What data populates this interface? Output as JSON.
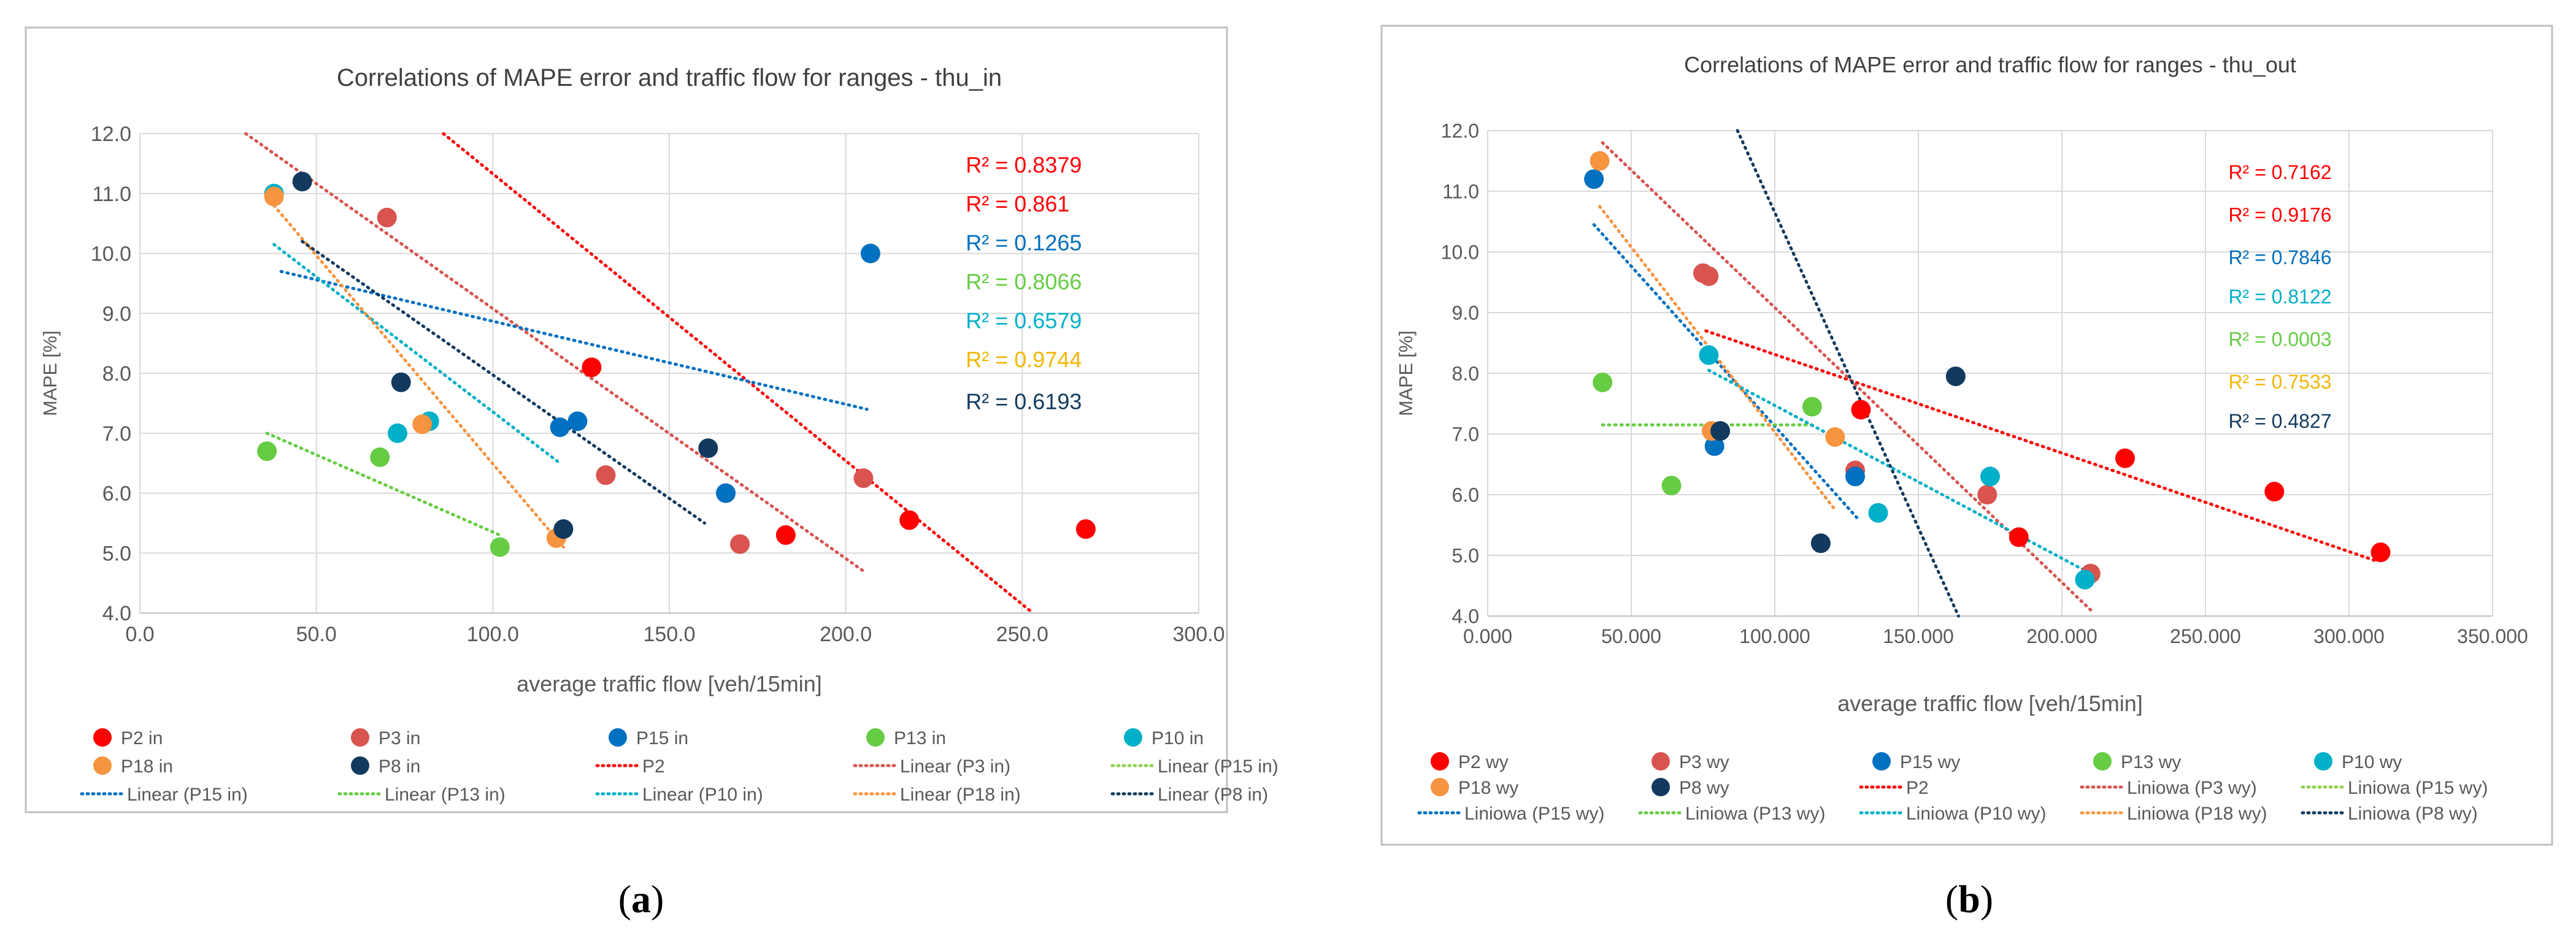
{
  "panels": {
    "a": {
      "caption_open": "(",
      "caption_letter": "a",
      "caption_close": ")"
    },
    "b": {
      "caption_open": "(",
      "caption_letter": "b",
      "caption_close": ")"
    }
  },
  "chart_data": [
    {
      "type": "scatter",
      "title": "Correlations of MAPE error and traffic flow for ranges - thu_in",
      "xlabel": "average traffic flow [veh/15min]",
      "ylabel": "MAPE [%]",
      "xlim": [
        0,
        300
      ],
      "ylim": [
        4,
        12
      ],
      "xticks": [
        0,
        50,
        100,
        150,
        200,
        250,
        300
      ],
      "xtick_labels": [
        "0.0",
        "50.0",
        "100.0",
        "150.0",
        "200.0",
        "250.0",
        "300.0"
      ],
      "yticks": [
        4,
        5,
        6,
        7,
        8,
        9,
        10,
        11,
        12
      ],
      "ytick_labels": [
        "4.0",
        "5.0",
        "6.0",
        "7.0",
        "8.0",
        "9.0",
        "10.0",
        "11.0",
        "12.0"
      ],
      "grid": true,
      "legend_position": "bottom",
      "series": [
        {
          "name": "P2 in",
          "color": "#ff0000",
          "points": [
            [
              128,
              8.1
            ],
            [
              183,
              5.3
            ],
            [
              218,
              5.55
            ],
            [
              268,
              5.4
            ]
          ]
        },
        {
          "name": "P3 in",
          "color": "#d9534f",
          "points": [
            [
              70,
              10.6
            ],
            [
              132,
              6.3
            ],
            [
              170,
              5.15
            ],
            [
              205,
              6.25
            ]
          ]
        },
        {
          "name": "P15 in",
          "color": "#0070c0",
          "points": [
            [
              119,
              7.1
            ],
            [
              124,
              7.2
            ],
            [
              166,
              6.0
            ],
            [
              207,
              10.0
            ]
          ]
        },
        {
          "name": "P13 in",
          "color": "#66cc44",
          "points": [
            [
              36,
              6.7
            ],
            [
              68,
              6.6
            ],
            [
              102,
              5.1
            ]
          ]
        },
        {
          "name": "P10 in",
          "color": "#00b0c8",
          "points": [
            [
              38,
              11.0
            ],
            [
              73,
              7.0
            ],
            [
              82,
              7.2
            ]
          ]
        },
        {
          "name": "P18 in",
          "color": "#f7943f",
          "points": [
            [
              38,
              10.95
            ],
            [
              80,
              7.15
            ],
            [
              118,
              5.25
            ]
          ]
        },
        {
          "name": "P8 in",
          "color": "#123a5e",
          "points": [
            [
              46,
              11.2
            ],
            [
              74,
              7.85
            ],
            [
              120,
              5.4
            ],
            [
              161,
              6.75
            ]
          ]
        }
      ],
      "trendlines": [
        {
          "name": "P2",
          "color": "#ff0000",
          "from": [
            86,
            12.0
          ],
          "to": [
            253,
            4.0
          ]
        },
        {
          "name": "Linear (P3 in)",
          "color": "#d9534f",
          "from": [
            30,
            12.0
          ],
          "to": [
            205,
            4.7
          ]
        },
        {
          "name": "Linear (P15 in)",
          "color": "#0070c0",
          "from": [
            40,
            9.7
          ],
          "to": [
            206,
            7.4
          ]
        },
        {
          "name": "Linear (P13 in)",
          "color": "#66cc44",
          "from": [
            36,
            7.0
          ],
          "to": [
            102,
            5.3
          ]
        },
        {
          "name": "Linear (P10 in)",
          "color": "#00b0c8",
          "from": [
            38,
            10.15
          ],
          "to": [
            119,
            6.5
          ]
        },
        {
          "name": "Linear (P18 in)",
          "color": "#f7943f",
          "from": [
            38,
            10.8
          ],
          "to": [
            120,
            5.1
          ]
        },
        {
          "name": "Linear (P8 in)",
          "color": "#123a5e",
          "from": [
            46,
            10.2
          ],
          "to": [
            160,
            5.5
          ]
        }
      ],
      "r2_labels": [
        {
          "text": "R² = 0.8379",
          "color": "#ff0000",
          "at": [
            234,
            11.35
          ]
        },
        {
          "text": "R² = 0.861",
          "color": "#ff0000",
          "at": [
            234,
            10.7
          ]
        },
        {
          "text": "R² = 0.1265",
          "color": "#0070c0",
          "at": [
            234,
            10.05
          ]
        },
        {
          "text": "R² = 0.8066",
          "color": "#66cc44",
          "at": [
            234,
            9.4
          ]
        },
        {
          "text": "R² = 0.6579",
          "color": "#00b0c8",
          "at": [
            234,
            8.75
          ]
        },
        {
          "text": "R² = 0.9744",
          "color": "#f2b705",
          "at": [
            234,
            8.1
          ]
        },
        {
          "text": "R² = 0.6193",
          "color": "#123a5e",
          "at": [
            234,
            7.4
          ]
        }
      ],
      "legend": [
        {
          "label": "P2 in",
          "type": "dot",
          "color": "#ff0000"
        },
        {
          "label": "P3 in",
          "type": "dot",
          "color": "#d9534f"
        },
        {
          "label": "P15 in",
          "type": "dot",
          "color": "#0070c0"
        },
        {
          "label": "P13 in",
          "type": "dot",
          "color": "#66cc44"
        },
        {
          "label": "P10 in",
          "type": "dot",
          "color": "#00b0c8"
        },
        {
          "label": "P18 in",
          "type": "dot",
          "color": "#f7943f"
        },
        {
          "label": "P8 in",
          "type": "dot",
          "color": "#123a5e"
        },
        {
          "label": "P2",
          "type": "line",
          "color": "#ff0000"
        },
        {
          "label": "Linear (P3 in)",
          "type": "line",
          "color": "#d9534f"
        },
        {
          "label": "Linear (P15 in)",
          "type": "line",
          "color": "#92d050"
        },
        {
          "label": "Linear (P15 in)",
          "type": "line",
          "color": "#0070c0"
        },
        {
          "label": "Linear (P13 in)",
          "type": "line",
          "color": "#66cc44"
        },
        {
          "label": "Linear (P10 in)",
          "type": "line",
          "color": "#00b0c8"
        },
        {
          "label": "Linear (P18 in)",
          "type": "line",
          "color": "#f7943f"
        },
        {
          "label": "Linear (P8 in)",
          "type": "line",
          "color": "#123a5e"
        }
      ]
    },
    {
      "type": "scatter",
      "title": "Correlations of MAPE error and traffic flow for ranges - thu_out",
      "xlabel": "average traffic flow [veh/15min]",
      "ylabel": "MAPE [%]",
      "xlim": [
        0,
        350000
      ],
      "ylim": [
        4,
        12
      ],
      "xticks": [
        0,
        50000,
        100000,
        150000,
        200000,
        250000,
        300000,
        350000
      ],
      "xtick_labels": [
        "0.000",
        "50.000",
        "100.000",
        "150.000",
        "200.000",
        "250.000",
        "300.000",
        "350.000"
      ],
      "yticks": [
        4,
        5,
        6,
        7,
        8,
        9,
        10,
        11,
        12
      ],
      "ytick_labels": [
        "4.0",
        "5.0",
        "6.0",
        "7.0",
        "8.0",
        "9.0",
        "10.0",
        "11.0",
        "12.0"
      ],
      "grid": true,
      "legend_position": "bottom",
      "series": [
        {
          "name": "P2 wy",
          "color": "#ff0000",
          "points": [
            [
              130000,
              7.4
            ],
            [
              185000,
              5.3
            ],
            [
              222000,
              6.6
            ],
            [
              274000,
              6.05
            ],
            [
              311000,
              5.05
            ]
          ]
        },
        {
          "name": "P3 wy",
          "color": "#d9534f",
          "points": [
            [
              75000,
              9.65
            ],
            [
              77000,
              9.6
            ],
            [
              128000,
              6.4
            ],
            [
              174000,
              6.0
            ],
            [
              210000,
              4.7
            ]
          ]
        },
        {
          "name": "P15 wy",
          "color": "#0070c0",
          "points": [
            [
              37000,
              11.2
            ],
            [
              79000,
              6.8
            ],
            [
              128000,
              6.3
            ]
          ]
        },
        {
          "name": "P13 wy",
          "color": "#66cc44",
          "points": [
            [
              40000,
              7.85
            ],
            [
              64000,
              6.15
            ],
            [
              113000,
              7.45
            ]
          ]
        },
        {
          "name": "P10 wy",
          "color": "#00b0c8",
          "points": [
            [
              77000,
              8.3
            ],
            [
              136000,
              5.7
            ],
            [
              175000,
              6.3
            ],
            [
              208000,
              4.6
            ]
          ]
        },
        {
          "name": "P18 wy",
          "color": "#f7943f",
          "points": [
            [
              39000,
              11.5
            ],
            [
              78000,
              7.05
            ],
            [
              121000,
              6.95
            ]
          ]
        },
        {
          "name": "P8 wy",
          "color": "#123a5e",
          "points": [
            [
              81000,
              7.05
            ],
            [
              116000,
              5.2
            ],
            [
              163000,
              7.95
            ]
          ]
        }
      ],
      "trendlines": [
        {
          "name": "P2",
          "color": "#ff0000",
          "from": [
            76000,
            8.7
          ],
          "to": [
            310000,
            4.9
          ]
        },
        {
          "name": "Liniowa (P3 wy)",
          "color": "#d9534f",
          "from": [
            40000,
            11.8
          ],
          "to": [
            210000,
            4.1
          ]
        },
        {
          "name": "Liniowa (P15 wy)",
          "color": "#0070c0",
          "from": [
            37000,
            10.45
          ],
          "to": [
            129000,
            5.6
          ]
        },
        {
          "name": "Liniowa (P13 wy)",
          "color": "#66cc44",
          "from": [
            40000,
            7.15
          ],
          "to": [
            113000,
            7.15
          ]
        },
        {
          "name": "Liniowa (P10 wy)",
          "color": "#00b0c8",
          "from": [
            77000,
            8.05
          ],
          "to": [
            208000,
            4.75
          ]
        },
        {
          "name": "Liniowa (P18 wy)",
          "color": "#f7943f",
          "from": [
            39000,
            10.75
          ],
          "to": [
            121000,
            5.75
          ]
        },
        {
          "name": "Liniowa (P8 wy)",
          "color": "#123a5e",
          "from": [
            87000,
            12.0
          ],
          "to": [
            164000,
            4.0
          ]
        }
      ],
      "r2_labels": [
        {
          "text": "R² = 0.7162",
          "color": "#ff0000",
          "at": [
            258000,
            11.2
          ]
        },
        {
          "text": "R² = 0.9176",
          "color": "#ff0000",
          "at": [
            258000,
            10.5
          ]
        },
        {
          "text": "R² = 0.7846",
          "color": "#0070c0",
          "at": [
            258000,
            9.8
          ]
        },
        {
          "text": "R² = 0.8122",
          "color": "#00b0c8",
          "at": [
            258000,
            9.15
          ]
        },
        {
          "text": "R² = 0.0003",
          "color": "#66cc44",
          "at": [
            258000,
            8.45
          ]
        },
        {
          "text": "R² = 0.7533",
          "color": "#f2b705",
          "at": [
            258000,
            7.75
          ]
        },
        {
          "text": "R² = 0.4827",
          "color": "#123a5e",
          "at": [
            258000,
            7.1
          ]
        }
      ],
      "legend": [
        {
          "label": "P2 wy",
          "type": "dot",
          "color": "#ff0000"
        },
        {
          "label": "P3 wy",
          "type": "dot",
          "color": "#d9534f"
        },
        {
          "label": "P15 wy",
          "type": "dot",
          "color": "#0070c0"
        },
        {
          "label": "P13 wy",
          "type": "dot",
          "color": "#66cc44"
        },
        {
          "label": "P10 wy",
          "type": "dot",
          "color": "#00b0c8"
        },
        {
          "label": "P18 wy",
          "type": "dot",
          "color": "#f7943f"
        },
        {
          "label": "P8 wy",
          "type": "dot",
          "color": "#123a5e"
        },
        {
          "label": "P2",
          "type": "line",
          "color": "#ff0000"
        },
        {
          "label": "Liniowa (P3 wy)",
          "type": "line",
          "color": "#d9534f"
        },
        {
          "label": "Liniowa (P15 wy)",
          "type": "line",
          "color": "#92d050"
        },
        {
          "label": "Liniowa (P15 wy)",
          "type": "line",
          "color": "#0070c0"
        },
        {
          "label": "Liniowa (P13 wy)",
          "type": "line",
          "color": "#66cc44"
        },
        {
          "label": "Liniowa (P10 wy)",
          "type": "line",
          "color": "#00b0c8"
        },
        {
          "label": "Liniowa (P18 wy)",
          "type": "line",
          "color": "#f7943f"
        },
        {
          "label": "Liniowa (P8 wy)",
          "type": "line",
          "color": "#123a5e"
        }
      ]
    }
  ]
}
